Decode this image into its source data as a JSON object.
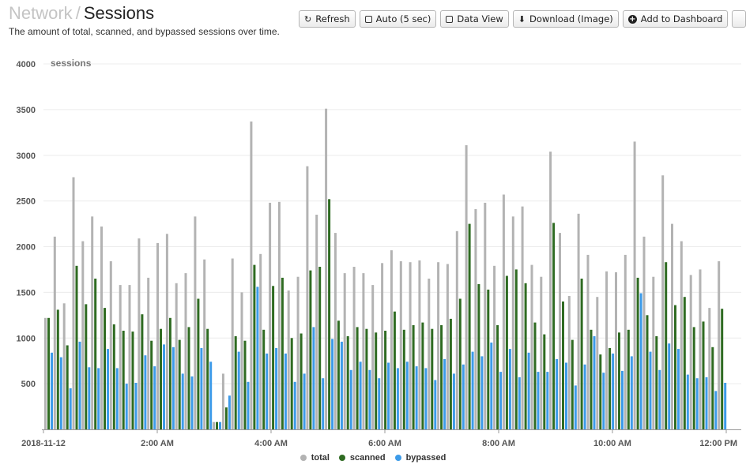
{
  "header": {
    "crumb": "Network",
    "separator": "/",
    "title": "Sessions",
    "subtitle": "The amount of total, scanned, and bypassed sessions over time."
  },
  "toolbar": {
    "refresh_label": "Refresh",
    "auto_label": "Auto (5 sec)",
    "data_view_label": "Data View",
    "download_label": "Download (Image)",
    "add_dashboard_label": "Add to Dashboard"
  },
  "chart_data": {
    "type": "bar",
    "ylabel": "sessions",
    "ylim": [
      0,
      4000
    ],
    "yticks": [
      500,
      1000,
      1500,
      2000,
      2500,
      3000,
      3500,
      4000
    ],
    "x_start_minutes": 0,
    "x_end_minutes": 720,
    "x_ticks": [
      {
        "minutes": 0,
        "label": "2018-11-12"
      },
      {
        "minutes": 120,
        "label": "2:00 AM"
      },
      {
        "minutes": 240,
        "label": "4:00 AM"
      },
      {
        "minutes": 360,
        "label": "6:00 AM"
      },
      {
        "minutes": 480,
        "label": "8:00 AM"
      },
      {
        "minutes": 600,
        "label": "10:00 AM"
      },
      {
        "minutes": 720,
        "label": "12:00 PM"
      }
    ],
    "grid": true,
    "legend_position": "bottom-center",
    "series": [
      {
        "name": "total",
        "color": "#b3b3b3",
        "values": [
          1220,
          2110,
          1380,
          2760,
          2060,
          2330,
          2220,
          1840,
          1580,
          1580,
          2090,
          1660,
          2040,
          2140,
          1600,
          1710,
          2330,
          1860,
          80,
          610,
          1870,
          1500,
          3370,
          1920,
          2480,
          2490,
          1520,
          1670,
          2880,
          2350,
          3510,
          2150,
          1710,
          1780,
          1710,
          1580,
          1820,
          1960,
          1840,
          1830,
          1850,
          1650,
          1830,
          1810,
          2170,
          3110,
          2410,
          2480,
          1790,
          2570,
          2330,
          2440,
          1800,
          1670,
          3040,
          2150,
          1460,
          2360,
          1910,
          1450,
          1730,
          1720,
          1910,
          3150,
          2110,
          1670,
          2780,
          2250,
          2060,
          1690,
          1750,
          1330,
          1840
        ]
      },
      {
        "name": "scanned",
        "color": "#2f6b22",
        "values": [
          1220,
          1310,
          920,
          1790,
          1370,
          1650,
          1330,
          1150,
          1080,
          1070,
          1260,
          970,
          1100,
          1220,
          980,
          1120,
          1430,
          1100,
          80,
          240,
          1020,
          970,
          1800,
          1090,
          1570,
          1660,
          1000,
          1050,
          1740,
          1780,
          2520,
          1190,
          1020,
          1120,
          1100,
          1060,
          1080,
          1290,
          1090,
          1140,
          1170,
          1100,
          1140,
          1210,
          1430,
          2250,
          1590,
          1530,
          1140,
          1680,
          1750,
          1600,
          1170,
          1040,
          2260,
          1400,
          980,
          1650,
          1090,
          820,
          890,
          1060,
          1090,
          1660,
          1250,
          1020,
          1830,
          1360,
          1450,
          1120,
          1180,
          900,
          1320
        ]
      },
      {
        "name": "bypassed",
        "color": "#3d9be9",
        "values": [
          840,
          790,
          450,
          960,
          680,
          670,
          880,
          670,
          500,
          510,
          810,
          690,
          930,
          900,
          610,
          580,
          890,
          740,
          80,
          370,
          850,
          520,
          1560,
          830,
          890,
          830,
          520,
          610,
          1120,
          560,
          990,
          960,
          650,
          740,
          650,
          560,
          730,
          670,
          740,
          690,
          670,
          540,
          770,
          610,
          710,
          850,
          800,
          950,
          630,
          880,
          570,
          840,
          630,
          630,
          770,
          730,
          480,
          710,
          1020,
          620,
          830,
          640,
          800,
          1490,
          850,
          650,
          940,
          880,
          600,
          560,
          570,
          420,
          510
        ]
      }
    ]
  }
}
